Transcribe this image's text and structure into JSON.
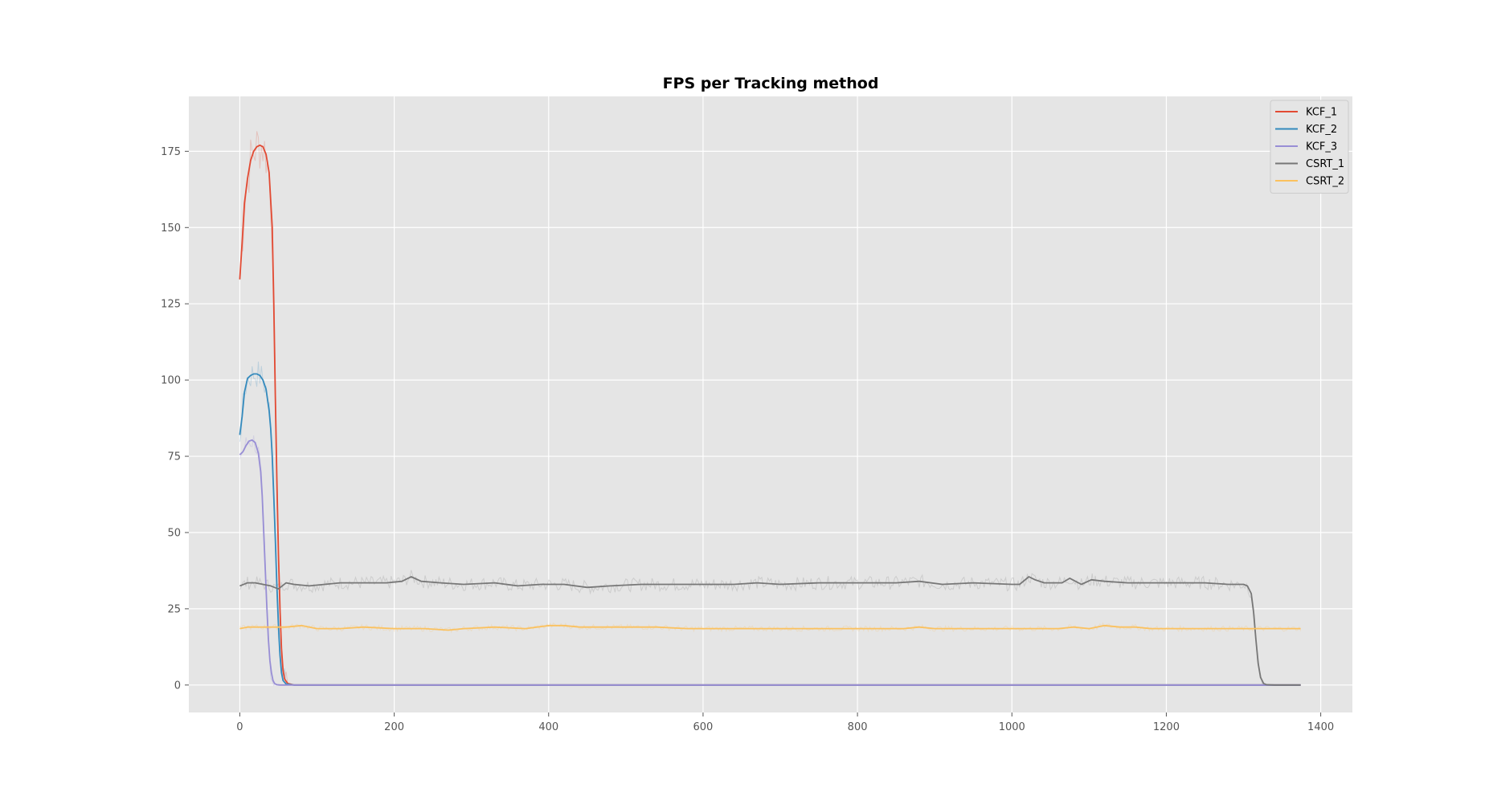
{
  "chart_data": {
    "type": "line",
    "title": "FPS per Tracking method",
    "xlabel": "",
    "ylabel": "",
    "xlim": [
      -66,
      1441
    ],
    "ylim": [
      -9,
      193
    ],
    "xticks": [
      0,
      200,
      400,
      600,
      800,
      1000,
      1200,
      1400
    ],
    "yticks": [
      0,
      25,
      50,
      75,
      100,
      125,
      150,
      175
    ],
    "grid": true,
    "legend_position": "top-right",
    "background": "#e5e5e5",
    "series": [
      {
        "name": "KCF_1",
        "color": "#e24a33",
        "x": [
          0,
          3,
          6,
          10,
          14,
          18,
          22,
          26,
          30,
          34,
          38,
          42,
          44,
          46,
          48,
          50,
          52,
          54,
          56,
          58,
          62,
          70,
          100,
          200,
          400,
          600,
          800,
          1000,
          1200,
          1374
        ],
        "values": [
          133,
          145,
          158,
          166,
          172,
          175,
          176.5,
          177,
          176.5,
          174,
          168,
          150,
          125,
          95,
          68,
          43,
          25,
          12,
          5,
          2,
          0.5,
          0,
          0,
          0,
          0,
          0,
          0,
          0,
          0,
          0
        ]
      },
      {
        "name": "KCF_2",
        "color": "#348abd",
        "x": [
          0,
          3,
          6,
          10,
          14,
          18,
          22,
          26,
          30,
          34,
          38,
          40,
          42,
          44,
          46,
          48,
          50,
          52,
          54,
          56,
          60,
          70,
          100,
          200,
          400,
          600,
          800,
          1000,
          1200,
          1374
        ],
        "values": [
          82,
          88,
          96,
          100.5,
          101.5,
          102,
          102,
          101.5,
          100,
          97,
          90,
          84,
          75,
          62,
          48,
          33,
          20,
          10,
          4,
          1.5,
          0.3,
          0,
          0,
          0,
          0,
          0,
          0,
          0,
          0,
          0
        ]
      },
      {
        "name": "KCF_3",
        "color": "#988ed5",
        "x": [
          0,
          4,
          8,
          12,
          16,
          20,
          24,
          27,
          29,
          31,
          33,
          35,
          37,
          39,
          41,
          43,
          45,
          48,
          52,
          60,
          100,
          200,
          400,
          600,
          800,
          1000,
          1200,
          1374
        ],
        "values": [
          75.5,
          76.5,
          78.5,
          80,
          80.3,
          79.5,
          76,
          70,
          62,
          50,
          38,
          26,
          15,
          8,
          4,
          1.5,
          0.5,
          0.1,
          0,
          0,
          0,
          0,
          0,
          0,
          0,
          0,
          0,
          0
        ]
      },
      {
        "name": "CSRT_1",
        "color": "#777777",
        "x": [
          0,
          10,
          20,
          30,
          40,
          50,
          60,
          70,
          90,
          110,
          130,
          150,
          170,
          190,
          210,
          222,
          235,
          260,
          290,
          330,
          360,
          390,
          420,
          450,
          480,
          520,
          560,
          600,
          640,
          670,
          700,
          750,
          800,
          850,
          880,
          910,
          950,
          1000,
          1010,
          1022,
          1030,
          1042,
          1055,
          1065,
          1075,
          1090,
          1103,
          1120,
          1150,
          1200,
          1250,
          1280,
          1300,
          1305,
          1310,
          1313,
          1316,
          1319,
          1322,
          1326,
          1330,
          1340,
          1374
        ],
        "values": [
          32.5,
          33.5,
          33.5,
          33,
          32.5,
          31.5,
          33.5,
          33,
          32.5,
          33,
          33.5,
          33.5,
          33.5,
          33.5,
          34,
          35.5,
          34,
          33.5,
          33,
          33.5,
          32.5,
          33,
          33,
          32,
          32.5,
          33,
          33,
          33,
          33,
          33.5,
          33,
          33.5,
          33.5,
          33.5,
          34,
          33,
          33.5,
          33,
          33,
          35.5,
          34.5,
          33.5,
          33.5,
          33.5,
          35,
          33,
          34.5,
          34,
          33.5,
          33.5,
          33.5,
          33,
          33,
          32.5,
          30,
          24,
          15,
          7,
          2.5,
          0.5,
          0.1,
          0,
          0
        ]
      },
      {
        "name": "CSRT_2",
        "color": "#fbc15e",
        "x": [
          0,
          10,
          20,
          40,
          60,
          80,
          100,
          130,
          160,
          200,
          240,
          270,
          290,
          330,
          370,
          400,
          420,
          440,
          460,
          500,
          540,
          580,
          620,
          660,
          700,
          740,
          780,
          820,
          860,
          880,
          900,
          940,
          980,
          1020,
          1060,
          1080,
          1100,
          1120,
          1140,
          1160,
          1180,
          1200,
          1250,
          1300,
          1340,
          1374
        ],
        "values": [
          18.5,
          19,
          19,
          19,
          19,
          19.5,
          18.5,
          18.5,
          19,
          18.5,
          18.5,
          18,
          18.5,
          19,
          18.5,
          19.5,
          19.5,
          19,
          19,
          19,
          19,
          18.5,
          18.5,
          18.5,
          18.5,
          18.5,
          18.5,
          18.5,
          18.5,
          19,
          18.5,
          18.5,
          18.5,
          18.5,
          18.5,
          19,
          18.5,
          19.5,
          19,
          19,
          18.5,
          18.5,
          18.5,
          18.5,
          18.5,
          18.5
        ]
      }
    ]
  }
}
